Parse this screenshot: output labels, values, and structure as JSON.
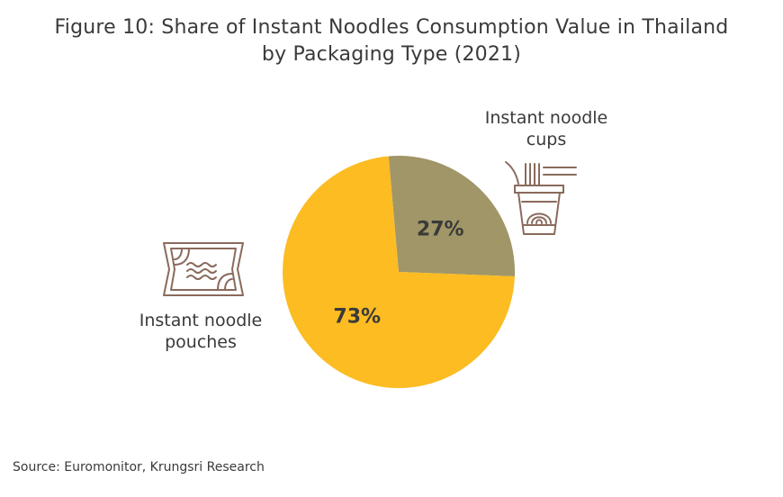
{
  "title": {
    "line1": "Figure 10: Share of Instant Noodles Consumption Value in Thailand",
    "line2": "by Packaging Type (2021)"
  },
  "chart_data": {
    "type": "pie",
    "title": "Figure 10: Share of Instant Noodles Consumption Value in Thailand by Packaging Type (2021)",
    "slices": [
      {
        "name": "Instant noodle cups",
        "value": 27,
        "label": "27%",
        "color": "#a19668"
      },
      {
        "name": "Instant noodle pouches",
        "value": 73,
        "label": "73%",
        "color": "#fcbc22"
      }
    ],
    "labels": {
      "cups": [
        "Instant noodle",
        "cups"
      ],
      "pouches": [
        "Instant noodle",
        "pouches"
      ]
    }
  },
  "icons": {
    "cups": "noodle-cup-icon",
    "pouches": "noodle-pouch-icon"
  },
  "source": "Source: Euromonitor, Krungsri Research"
}
